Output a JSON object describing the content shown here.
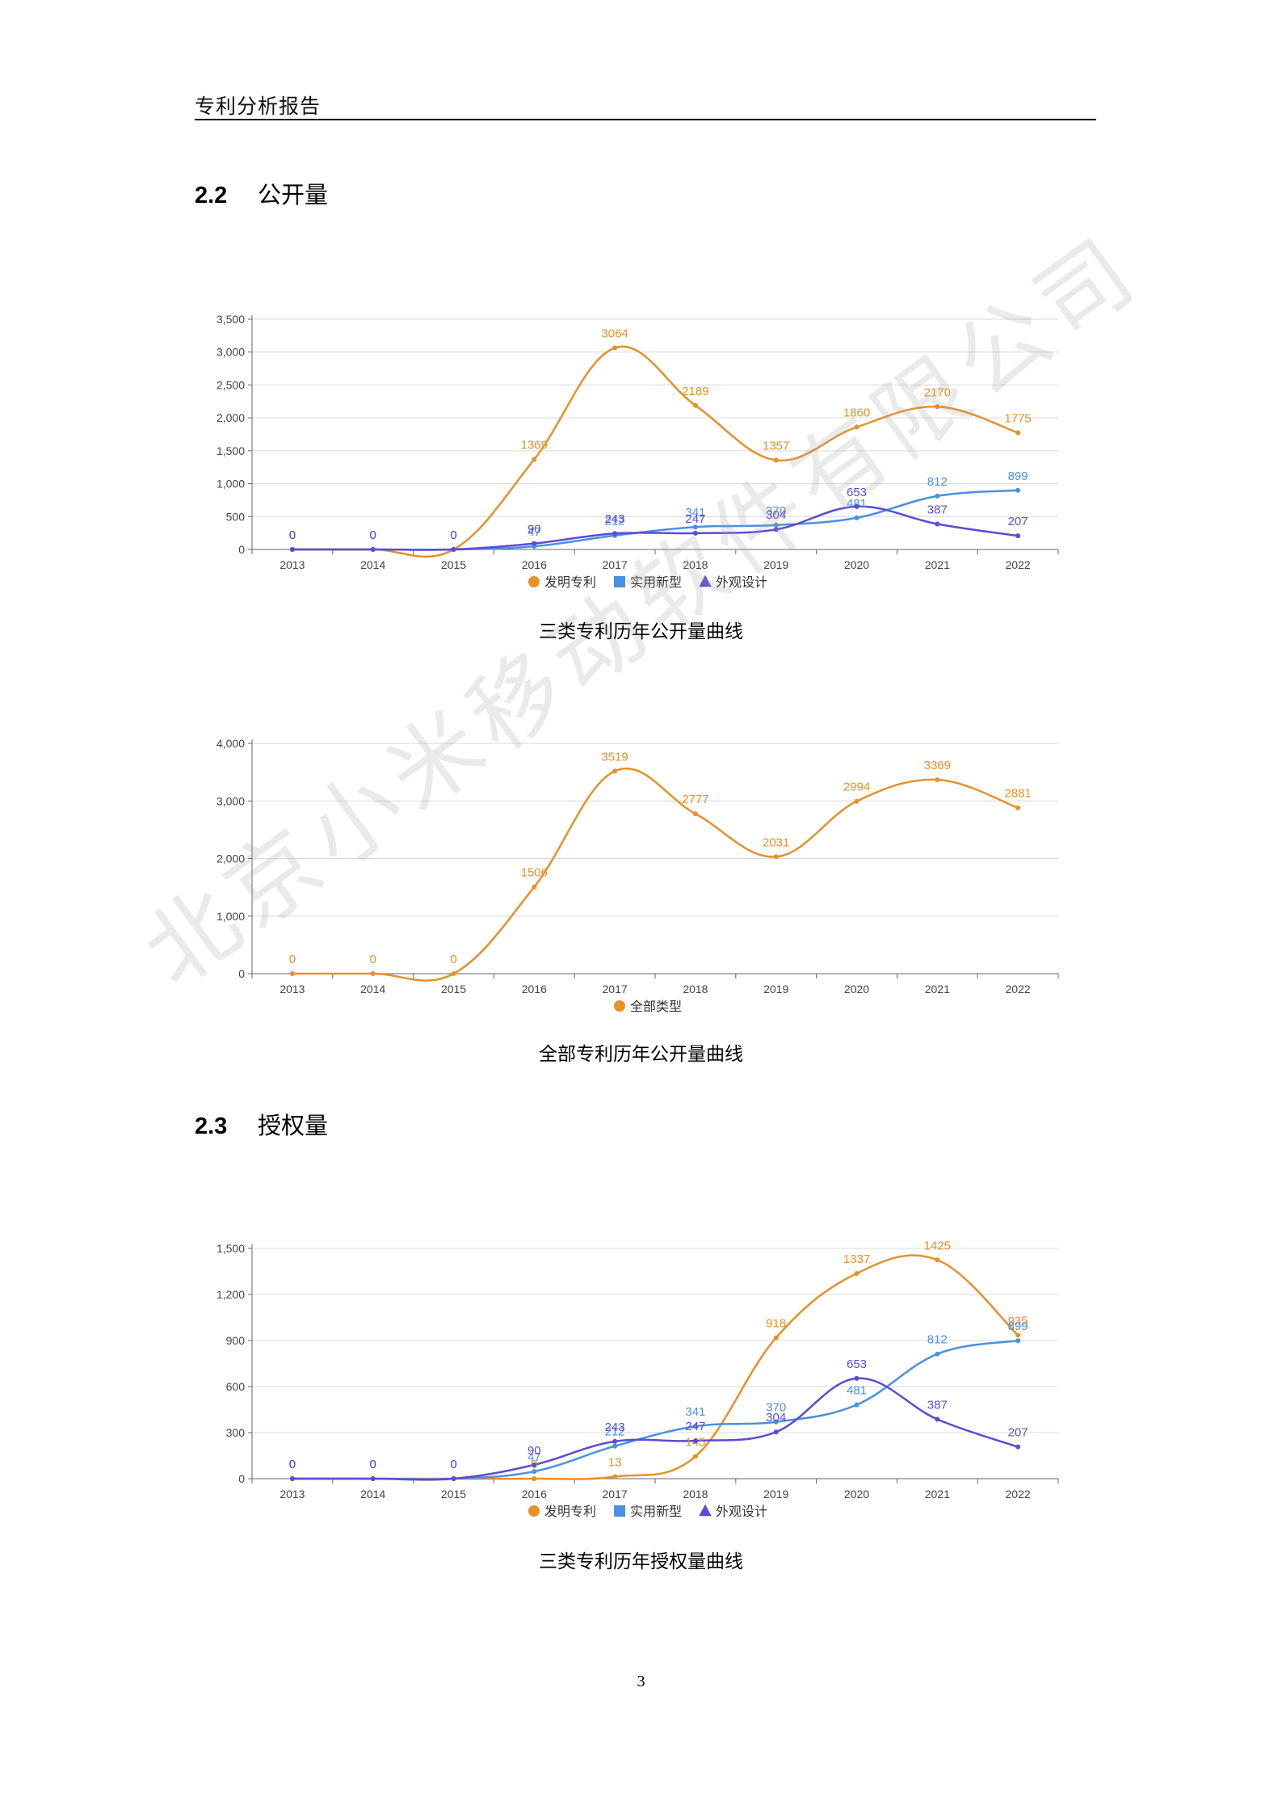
{
  "header": {
    "title": "专利分析报告"
  },
  "sections": [
    {
      "number": "2.2",
      "title": "公开量"
    },
    {
      "number": "2.3",
      "title": "授权量"
    }
  ],
  "watermark": "北京小米移动软件有限公司",
  "page_number": "3",
  "colors": {
    "invention": "#E8902A",
    "utility": "#4A90E2",
    "design": "#5B4BD6"
  },
  "chart_data": [
    {
      "type": "line",
      "title": "",
      "caption": "三类专利历年公开量曲线",
      "categories": [
        "2013",
        "2014",
        "2015",
        "2016",
        "2017",
        "2018",
        "2019",
        "2020",
        "2021",
        "2022"
      ],
      "yticks": [
        "0",
        "500",
        "1,000",
        "1,500",
        "2,000",
        "2,500",
        "3,000",
        "3,500"
      ],
      "ylim": [
        0,
        3500
      ],
      "grid": true,
      "legend": "bottom",
      "series": [
        {
          "name": "发明专利",
          "color": "#E8902A",
          "marker": "circle",
          "values": [
            0,
            0,
            0,
            1369,
            3064,
            2189,
            1357,
            1860,
            2170,
            1775
          ]
        },
        {
          "name": "实用新型",
          "color": "#4A90E2",
          "marker": "square",
          "values": [
            0,
            0,
            0,
            47,
            212,
            341,
            370,
            481,
            812,
            899
          ]
        },
        {
          "name": "外观设计",
          "color": "#5B4BD6",
          "marker": "triangle",
          "values": [
            0,
            0,
            0,
            90,
            243,
            247,
            304,
            653,
            387,
            207
          ]
        }
      ]
    },
    {
      "type": "line",
      "title": "",
      "caption": "全部专利历年公开量曲线",
      "categories": [
        "2013",
        "2014",
        "2015",
        "2016",
        "2017",
        "2018",
        "2019",
        "2020",
        "2021",
        "2022"
      ],
      "yticks": [
        "0",
        "1,000",
        "2,000",
        "3,000",
        "4,000"
      ],
      "ylim": [
        0,
        4000
      ],
      "grid": true,
      "legend": "bottom",
      "series": [
        {
          "name": "全部类型",
          "color": "#E8902A",
          "marker": "circle",
          "values": [
            0,
            0,
            0,
            1506,
            3519,
            2777,
            2031,
            2994,
            3369,
            2881
          ]
        }
      ]
    },
    {
      "type": "line",
      "title": "",
      "caption": "三类专利历年授权量曲线",
      "categories": [
        "2013",
        "2014",
        "2015",
        "2016",
        "2017",
        "2018",
        "2019",
        "2020",
        "2021",
        "2022"
      ],
      "yticks": [
        "0",
        "300",
        "600",
        "900",
        "1,200",
        "1,500"
      ],
      "ylim": [
        0,
        1500
      ],
      "grid": true,
      "legend": "bottom",
      "series": [
        {
          "name": "发明专利",
          "color": "#E8902A",
          "marker": "circle",
          "values": [
            0,
            0,
            0,
            0,
            13,
            145,
            918,
            1337,
            1425,
            935
          ]
        },
        {
          "name": "实用新型",
          "color": "#4A90E2",
          "marker": "square",
          "values": [
            0,
            0,
            0,
            47,
            212,
            341,
            370,
            481,
            812,
            899
          ]
        },
        {
          "name": "外观设计",
          "color": "#5B4BD6",
          "marker": "triangle",
          "values": [
            0,
            0,
            0,
            90,
            243,
            247,
            304,
            653,
            387,
            207
          ]
        }
      ]
    }
  ]
}
